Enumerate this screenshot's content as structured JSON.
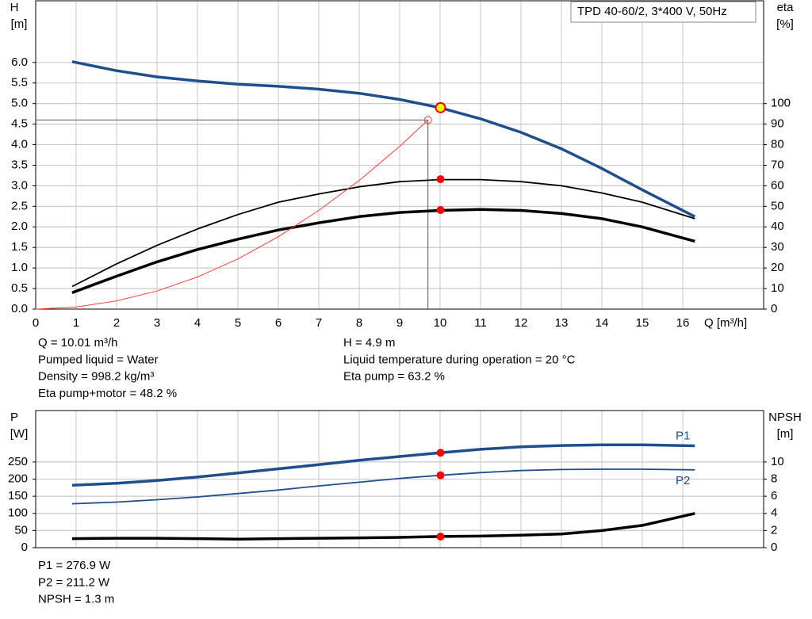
{
  "chart_data": [
    {
      "type": "line",
      "title": "TPD 40-60/2, 3*400 V, 50Hz",
      "y_label": "H",
      "y_unit": "[m]",
      "y2_label": "eta",
      "y2_unit": "[%]",
      "x_label": "Q [m³/h]",
      "xlim": [
        0,
        18
      ],
      "xticks": [
        0,
        1,
        2,
        3,
        4,
        5,
        6,
        7,
        8,
        9,
        10,
        11,
        12,
        13,
        14,
        15,
        16
      ],
      "ylim": [
        0,
        7.5
      ],
      "yticks": [
        {
          "value": 0,
          "label": "0.0"
        },
        0.5,
        {
          "value": 1,
          "label": "1.0"
        },
        1.5,
        {
          "value": 2,
          "label": "2.0"
        },
        2.5,
        {
          "value": 3,
          "label": "3.0"
        },
        3.5,
        {
          "value": 4,
          "label": "4.0"
        },
        4.5,
        {
          "value": 5,
          "label": "5.0"
        },
        5.5,
        {
          "value": 6,
          "label": "6.0"
        }
      ],
      "y2lim": [
        0,
        150
      ],
      "y2ticks": [
        0,
        10,
        20,
        30,
        40,
        50,
        60,
        70,
        80,
        90,
        100
      ],
      "grid": true,
      "x": [
        0.9,
        2,
        3,
        4,
        5,
        6,
        7,
        8,
        9,
        10,
        11,
        12,
        13,
        14,
        15,
        16.3
      ],
      "series": [
        {
          "color": "#1f4e8c",
          "style": "thick",
          "values": [
            6.02,
            5.8,
            5.65,
            5.55,
            5.47,
            5.42,
            5.35,
            5.25,
            5.1,
            4.9,
            4.63,
            4.3,
            3.9,
            3.42,
            2.9,
            2.25
          ]
        },
        {
          "color": "#000000",
          "style": "medium",
          "axis": "y2",
          "values": [
            11,
            22,
            31,
            39,
            46,
            52,
            56,
            59.5,
            62,
            63,
            63,
            62,
            60,
            56.5,
            52,
            44
          ]
        },
        {
          "color": "#000000",
          "style": "thick",
          "axis": "y2",
          "values": [
            8,
            16,
            23,
            29,
            34,
            38.5,
            42,
            45,
            47,
            48,
            48.5,
            48,
            46.5,
            44,
            40,
            33
          ]
        },
        {
          "color": "#ff3b3b",
          "style": "thin",
          "x": [
            0,
            1,
            2,
            3,
            4,
            5,
            6,
            7,
            8,
            9,
            9.7
          ],
          "values": [
            0,
            0.05,
            0.2,
            0.44,
            0.78,
            1.22,
            1.76,
            2.4,
            3.13,
            3.96,
            4.6
          ]
        }
      ],
      "guide": {
        "x": 9.7,
        "y": 4.6
      },
      "markers": [
        {
          "x": 10.01,
          "y": 4.9,
          "color": "#ffff00"
        },
        {
          "x": 10.01,
          "y": 63.2,
          "axis": "y2",
          "color": "#ff0000"
        },
        {
          "x": 10.01,
          "y": 48.2,
          "axis": "y2",
          "color": "#ff0000"
        }
      ],
      "info_left": [
        "Q = 10.01 m³/h",
        "Pumped liquid = Water",
        "Density = 998.2 kg/m³",
        "Eta pump+motor = 48.2 %"
      ],
      "info_right": [
        "H = 4.9 m",
        "Liquid temperature during operation = 20 °C",
        "Eta pump = 63.2 %"
      ]
    },
    {
      "type": "line",
      "y_label": "P",
      "y_unit": "[W]",
      "y2_label": "NPSH",
      "y2_unit": "[m]",
      "xlim": [
        0,
        18
      ],
      "ylim": [
        0,
        400
      ],
      "yticks": [
        0,
        50,
        100,
        150,
        200,
        250
      ],
      "y2lim": [
        0,
        16
      ],
      "y2ticks": [
        0,
        2,
        4,
        6,
        8,
        10
      ],
      "grid": true,
      "x": [
        0.9,
        2,
        3,
        4,
        5,
        6,
        7,
        8,
        9,
        10,
        11,
        12,
        13,
        14,
        15,
        16.3
      ],
      "series": [
        {
          "name": "P1",
          "color": "#1f4e8c",
          "style": "thick",
          "values": [
            182,
            188,
            196,
            206,
            218,
            230,
            242,
            255,
            266,
            277,
            287,
            294,
            298,
            300,
            300,
            297
          ]
        },
        {
          "name": "P2",
          "color": "#1f4e8c",
          "style": "medium",
          "values": [
            128,
            133,
            140,
            148,
            158,
            168,
            180,
            191,
            202,
            211,
            219,
            225,
            228,
            229,
            229,
            227
          ]
        },
        {
          "color": "#000000",
          "style": "thick",
          "axis": "y2",
          "values": [
            1.05,
            1.1,
            1.1,
            1.05,
            1.0,
            1.05,
            1.1,
            1.15,
            1.2,
            1.3,
            1.35,
            1.45,
            1.6,
            2.0,
            2.6,
            4.0
          ]
        }
      ],
      "markers": [
        {
          "x": 10.01,
          "y": 276.9,
          "color": "#ff0000"
        },
        {
          "x": 10.01,
          "y": 211.2,
          "color": "#ff0000"
        },
        {
          "x": 10.01,
          "y": 1.3,
          "axis": "y2",
          "color": "#ff0000"
        }
      ],
      "info": [
        "P1 = 276.9 W",
        "P2 = 211.2 W",
        "NPSH = 1.3 m"
      ]
    }
  ]
}
